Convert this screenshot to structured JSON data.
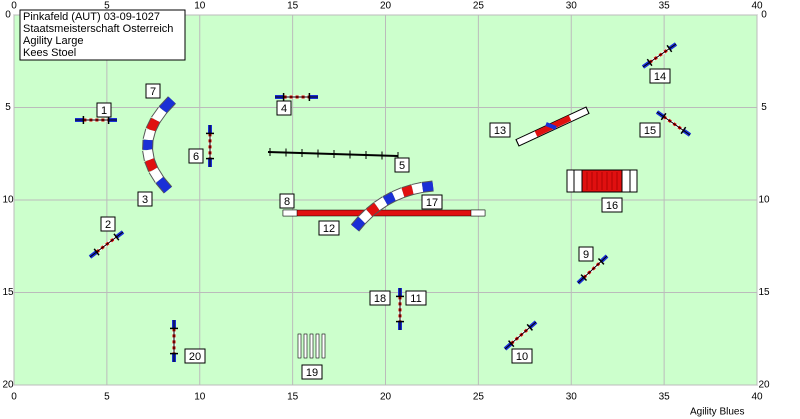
{
  "header": {
    "lines": [
      "Pinkafeld (AUT) 03-09-1027",
      "Staatsmeisterschaft Osterreich",
      "Agility Large",
      "Kees Stoel"
    ]
  },
  "axes": {
    "xlim": [
      0,
      40
    ],
    "ylim": [
      0,
      20
    ],
    "xticks": [
      0,
      5,
      10,
      15,
      20,
      25,
      30,
      35,
      40
    ],
    "yticks": [
      0,
      5,
      10,
      15,
      20
    ]
  },
  "obstacles": {
    "labels": [
      "1",
      "2",
      "3",
      "4",
      "5",
      "6",
      "7",
      "8",
      "9",
      "10",
      "11",
      "12",
      "13",
      "14",
      "15",
      "16",
      "17",
      "18",
      "19",
      "20"
    ]
  },
  "footer": "Agility Blues"
}
